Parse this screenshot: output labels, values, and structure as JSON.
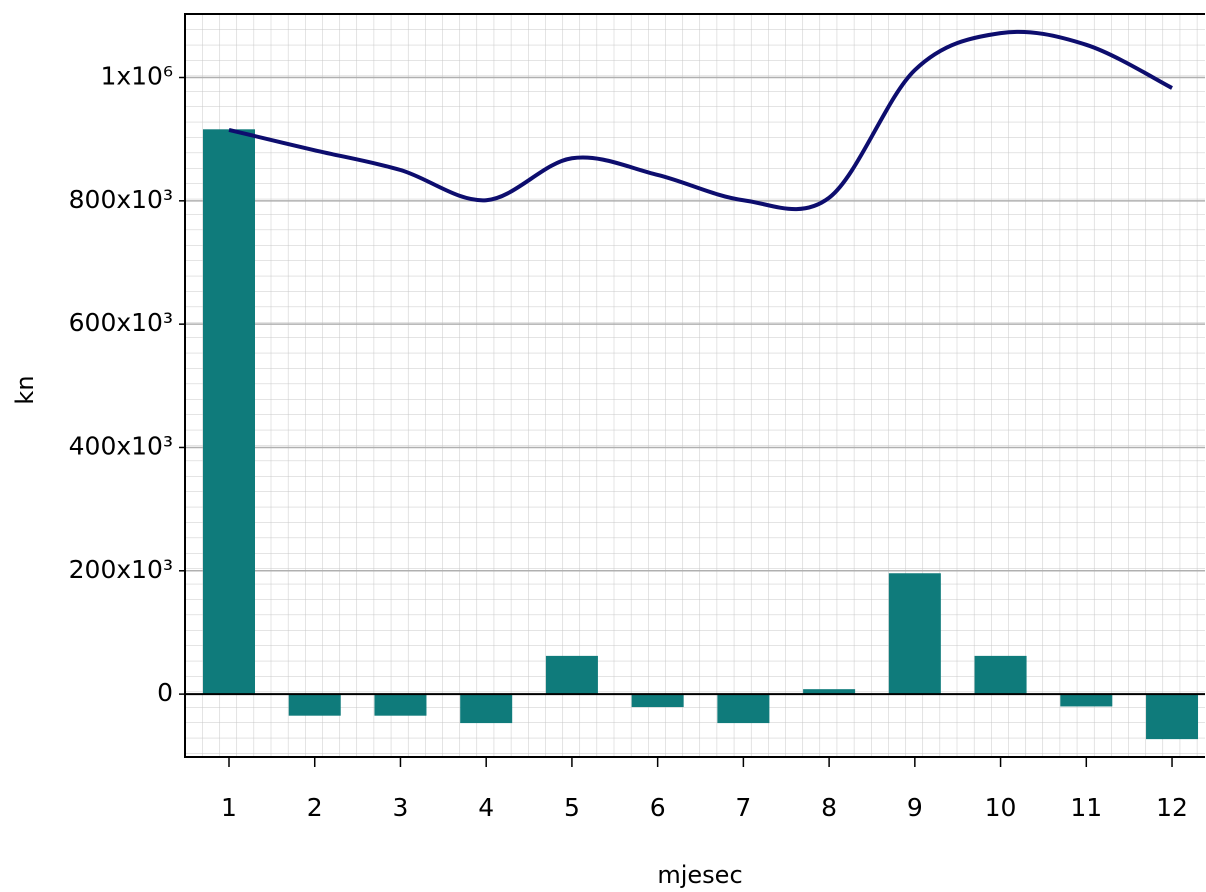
{
  "chart_data": {
    "type": "bar+line",
    "x_label": "mjesec",
    "y_label": "kn",
    "categories": [
      "1",
      "2",
      "3",
      "4",
      "5",
      "6",
      "7",
      "8",
      "9",
      "10",
      "11",
      "12"
    ],
    "series": [
      {
        "type": "bar",
        "color": "#0f7b7b",
        "values": [
          916000,
          -35000,
          -35000,
          -47000,
          62000,
          -21000,
          -47000,
          8000,
          196000,
          62000,
          -20000,
          -73000
        ]
      },
      {
        "type": "line",
        "color": "#0d0d6e",
        "values": [
          915000,
          882000,
          850000,
          801000,
          869000,
          842000,
          801000,
          805000,
          1012000,
          1072000,
          1053000,
          983000
        ]
      }
    ],
    "ylim": [
      -102000,
      1103000
    ],
    "yticks": [
      {
        "value": 0,
        "label": "0"
      },
      {
        "value": 200000,
        "label": "200x10³"
      },
      {
        "value": 400000,
        "label": "400x10³"
      },
      {
        "value": 600000,
        "label": "600x10³"
      },
      {
        "value": 800000,
        "label": "800x10³"
      },
      {
        "value": 1000000,
        "label": "1x10⁶"
      }
    ],
    "grid": true
  }
}
